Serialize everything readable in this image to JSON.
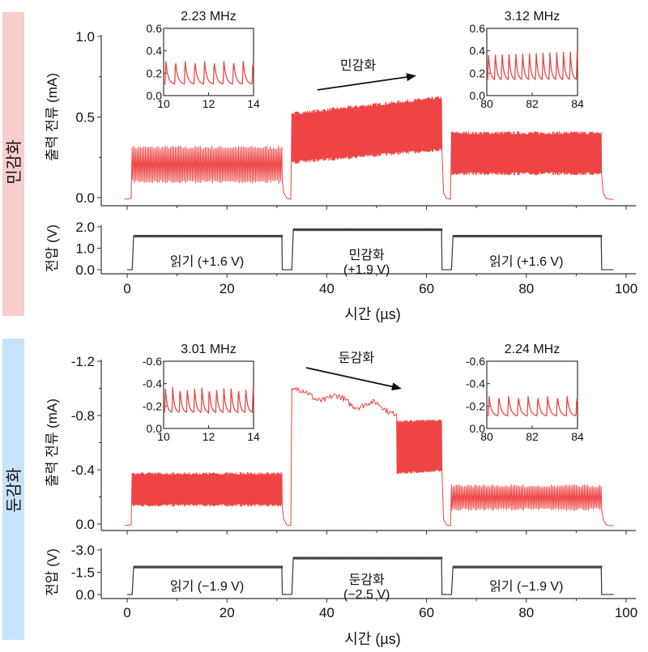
{
  "chart_data": [
    {
      "id": "sensitization",
      "group_label": "민감화",
      "group_color": "#f9cdcd",
      "current": {
        "type": "line",
        "ylabel": "출력 전류 (mA)",
        "ylim": [
          0.0,
          1.0
        ],
        "yticks": [
          "0.0",
          "0.5",
          "1.0"
        ],
        "ytick_values": [
          0.0,
          0.5,
          1.0
        ],
        "color": "#ee4444",
        "segments": [
          {
            "t_start": 1,
            "t_end": 31,
            "low": 0.1,
            "high": 0.31,
            "low_end": 0.1,
            "high_end": 0.31,
            "style": "spikes"
          },
          {
            "t_start": 33,
            "t_end": 63,
            "low": 0.22,
            "high": 0.52,
            "low_end": 0.3,
            "high_end": 0.62,
            "style": "dense"
          },
          {
            "t_start": 65,
            "t_end": 95,
            "low": 0.15,
            "high": 0.4,
            "low_end": 0.15,
            "high_end": 0.4,
            "style": "dense"
          }
        ],
        "annotation": {
          "text": "민감화",
          "arrow_from": [
            35,
            0.68
          ],
          "arrow_to": [
            58,
            0.75
          ]
        },
        "insets": [
          {
            "title": "2.23 MHz",
            "xlim": [
              10,
              14
            ],
            "xticks": [
              "10",
              "12",
              "14"
            ],
            "ylim": [
              0.0,
              0.6
            ],
            "yticks": [
              "0.0",
              "0.2",
              "0.4",
              "0.6"
            ],
            "peaks": 9,
            "low": 0.1,
            "high": 0.31
          },
          {
            "title": "3.12 MHz",
            "xlim": [
              80,
              84
            ],
            "xticks": [
              "80",
              "82",
              "84"
            ],
            "ylim": [
              0.0,
              0.6
            ],
            "yticks": [
              "0.0",
              "0.2",
              "0.4",
              "0.6"
            ],
            "peaks": 13,
            "low": 0.14,
            "high": 0.4
          }
        ]
      },
      "voltage": {
        "type": "line",
        "ylabel": "전압 (V)",
        "ylim": [
          0.0,
          2.0
        ],
        "yticks": [
          "0.0",
          "1.0",
          "2.0"
        ],
        "ytick_values": [
          0.0,
          1.0,
          2.0
        ],
        "pulses": [
          {
            "t_start": 1,
            "t_end": 31,
            "level": 1.6,
            "label1": "읽기 (+1.6 V)",
            "label2": ""
          },
          {
            "t_start": 33,
            "t_end": 63,
            "level": 1.9,
            "label1": "민감화",
            "label2": "(+1.9 V)"
          },
          {
            "t_start": 65,
            "t_end": 95,
            "level": 1.6,
            "label1": "읽기 (+1.6 V)",
            "label2": ""
          }
        ]
      },
      "xlabel": "시간 (µs)",
      "xlim": [
        -5,
        103
      ],
      "xticks": [
        "0",
        "20",
        "40",
        "60",
        "80",
        "100"
      ],
      "xtick_values": [
        0,
        20,
        40,
        60,
        80,
        100
      ]
    },
    {
      "id": "desensitization",
      "group_label": "둔감화",
      "group_color": "#c7e3f7",
      "current": {
        "type": "line",
        "ylabel": "출력 전류 (mA)",
        "ylim": [
          0.0,
          -1.2
        ],
        "yticks": [
          "0.0",
          "-0.4",
          "-0.8",
          "-1.2"
        ],
        "ytick_values": [
          0.0,
          -0.4,
          -0.8,
          -1.2
        ],
        "color": "#ee4444",
        "segments": [
          {
            "t_start": 1,
            "t_end": 31,
            "low": -0.14,
            "high": -0.37,
            "low_end": -0.14,
            "high_end": -0.37,
            "style": "dense"
          },
          {
            "t_start": 33,
            "t_end": 54,
            "low": -0.95,
            "high": -1.0,
            "low_end": -0.82,
            "high_end": -0.86,
            "style": "noisy"
          },
          {
            "t_start": 54,
            "t_end": 63,
            "low": -0.38,
            "high": -0.75,
            "low_end": -0.4,
            "high_end": -0.76,
            "style": "dense"
          },
          {
            "t_start": 65,
            "t_end": 95,
            "low": -0.11,
            "high": -0.28,
            "low_end": -0.11,
            "high_end": -0.28,
            "style": "spikes"
          }
        ],
        "annotation": {
          "text": "둔감화",
          "arrow_from": [
            36,
            -0.98
          ],
          "arrow_to": [
            55,
            -0.9
          ]
        },
        "insets": [
          {
            "title": "3.01 MHz",
            "xlim": [
              10,
              14
            ],
            "xticks": [
              "10",
              "12",
              "14"
            ],
            "ylim": [
              0.0,
              -0.6
            ],
            "yticks": [
              "0.0",
              "-0.2",
              "-0.4",
              "-0.6"
            ],
            "peaks": 12,
            "low": -0.14,
            "high": -0.37
          },
          {
            "title": "2.24 MHz",
            "xlim": [
              80,
              84
            ],
            "xticks": [
              "80",
              "82",
              "84"
            ],
            "ylim": [
              0.0,
              -0.6
            ],
            "yticks": [
              "0.0",
              "-0.2",
              "-0.4",
              "-0.6"
            ],
            "peaks": 9,
            "low": -0.11,
            "high": -0.29
          }
        ]
      },
      "voltage": {
        "type": "line",
        "ylabel": "전압 (V)",
        "ylim": [
          0.0,
          -3.0
        ],
        "yticks": [
          "0.0",
          "-1.5",
          "-3.0"
        ],
        "ytick_values": [
          0.0,
          -1.5,
          -3.0
        ],
        "pulses": [
          {
            "t_start": 1,
            "t_end": 31,
            "level": -1.9,
            "label1": "읽기 (−1.9 V)",
            "label2": ""
          },
          {
            "t_start": 33,
            "t_end": 63,
            "level": -2.5,
            "label1": "둔감화",
            "label2": "(−2.5 V)"
          },
          {
            "t_start": 65,
            "t_end": 95,
            "level": -1.9,
            "label1": "읽기 (−1.9 V)",
            "label2": ""
          }
        ]
      },
      "xlabel": "시간 (µs)",
      "xlim": [
        -5,
        103
      ],
      "xticks": [
        "0",
        "20",
        "40",
        "60",
        "80",
        "100"
      ],
      "xtick_values": [
        0,
        20,
        40,
        60,
        80,
        100
      ]
    }
  ]
}
